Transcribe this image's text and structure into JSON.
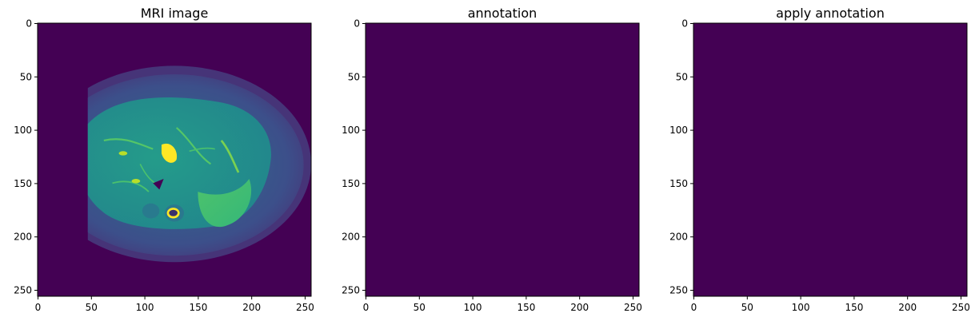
{
  "figure": {
    "panels": [
      {
        "id": "mri",
        "title": "MRI image"
      },
      {
        "id": "annotation",
        "title": "annotation"
      },
      {
        "id": "apply",
        "title": "apply annotation"
      }
    ],
    "axes": {
      "x_ticks": [
        "0",
        "50",
        "100",
        "150",
        "200",
        "250"
      ],
      "y_ticks": [
        "0",
        "50",
        "100",
        "150",
        "200",
        "250"
      ],
      "x_range": [
        0,
        256
      ],
      "y_range": [
        0,
        256
      ],
      "y_inverted": true
    },
    "colormap": "viridis",
    "colors": {
      "background": "#440154",
      "liver_label": "#3b528b",
      "spleen_label": "#fde725",
      "tissue_bright": "#2a9a8b",
      "vessel": "#6ad14c"
    }
  }
}
